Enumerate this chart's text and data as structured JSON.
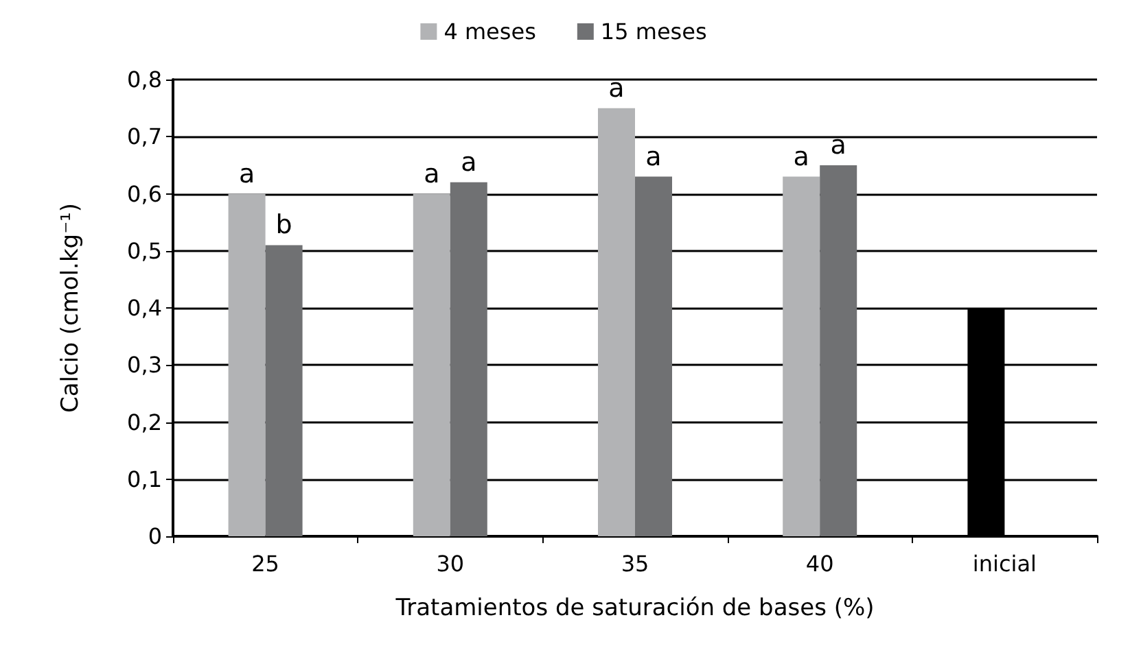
{
  "chart_data": {
    "type": "bar",
    "xlabel": "Tratamientos de saturación de bases (%)",
    "ylabel": "Calcio (cmol.kg⁻¹)",
    "categories": [
      "25",
      "30",
      "35",
      "40",
      "inicial"
    ],
    "series": [
      {
        "name": "4 meses",
        "color": "#b2b3b5",
        "colors": [
          "#b2b3b5",
          "#b2b3b5",
          "#b2b3b5",
          "#b2b3b5",
          "#000000"
        ],
        "values": [
          0.6,
          0.6,
          0.75,
          0.63,
          0.4
        ],
        "value_labels": [
          "a",
          "a",
          "a",
          "a",
          null
        ]
      },
      {
        "name": "15 meses",
        "color": "#707173",
        "values": [
          0.51,
          0.62,
          0.63,
          0.65,
          null
        ],
        "value_labels": [
          "b",
          "a",
          "a",
          "a",
          null
        ]
      }
    ],
    "ylim": [
      0,
      0.8
    ],
    "yticks": [
      {
        "value": 0,
        "label": "0"
      },
      {
        "value": 0.1,
        "label": "0,1"
      },
      {
        "value": 0.2,
        "label": "0,2"
      },
      {
        "value": 0.3,
        "label": "0,3"
      },
      {
        "value": 0.4,
        "label": "0,4"
      },
      {
        "value": 0.5,
        "label": "0,5"
      },
      {
        "value": 0.6,
        "label": "0,6"
      },
      {
        "value": 0.7,
        "label": "0,7"
      },
      {
        "value": 0.8,
        "label": "0,8"
      }
    ],
    "grid": "y",
    "legend": "top"
  }
}
